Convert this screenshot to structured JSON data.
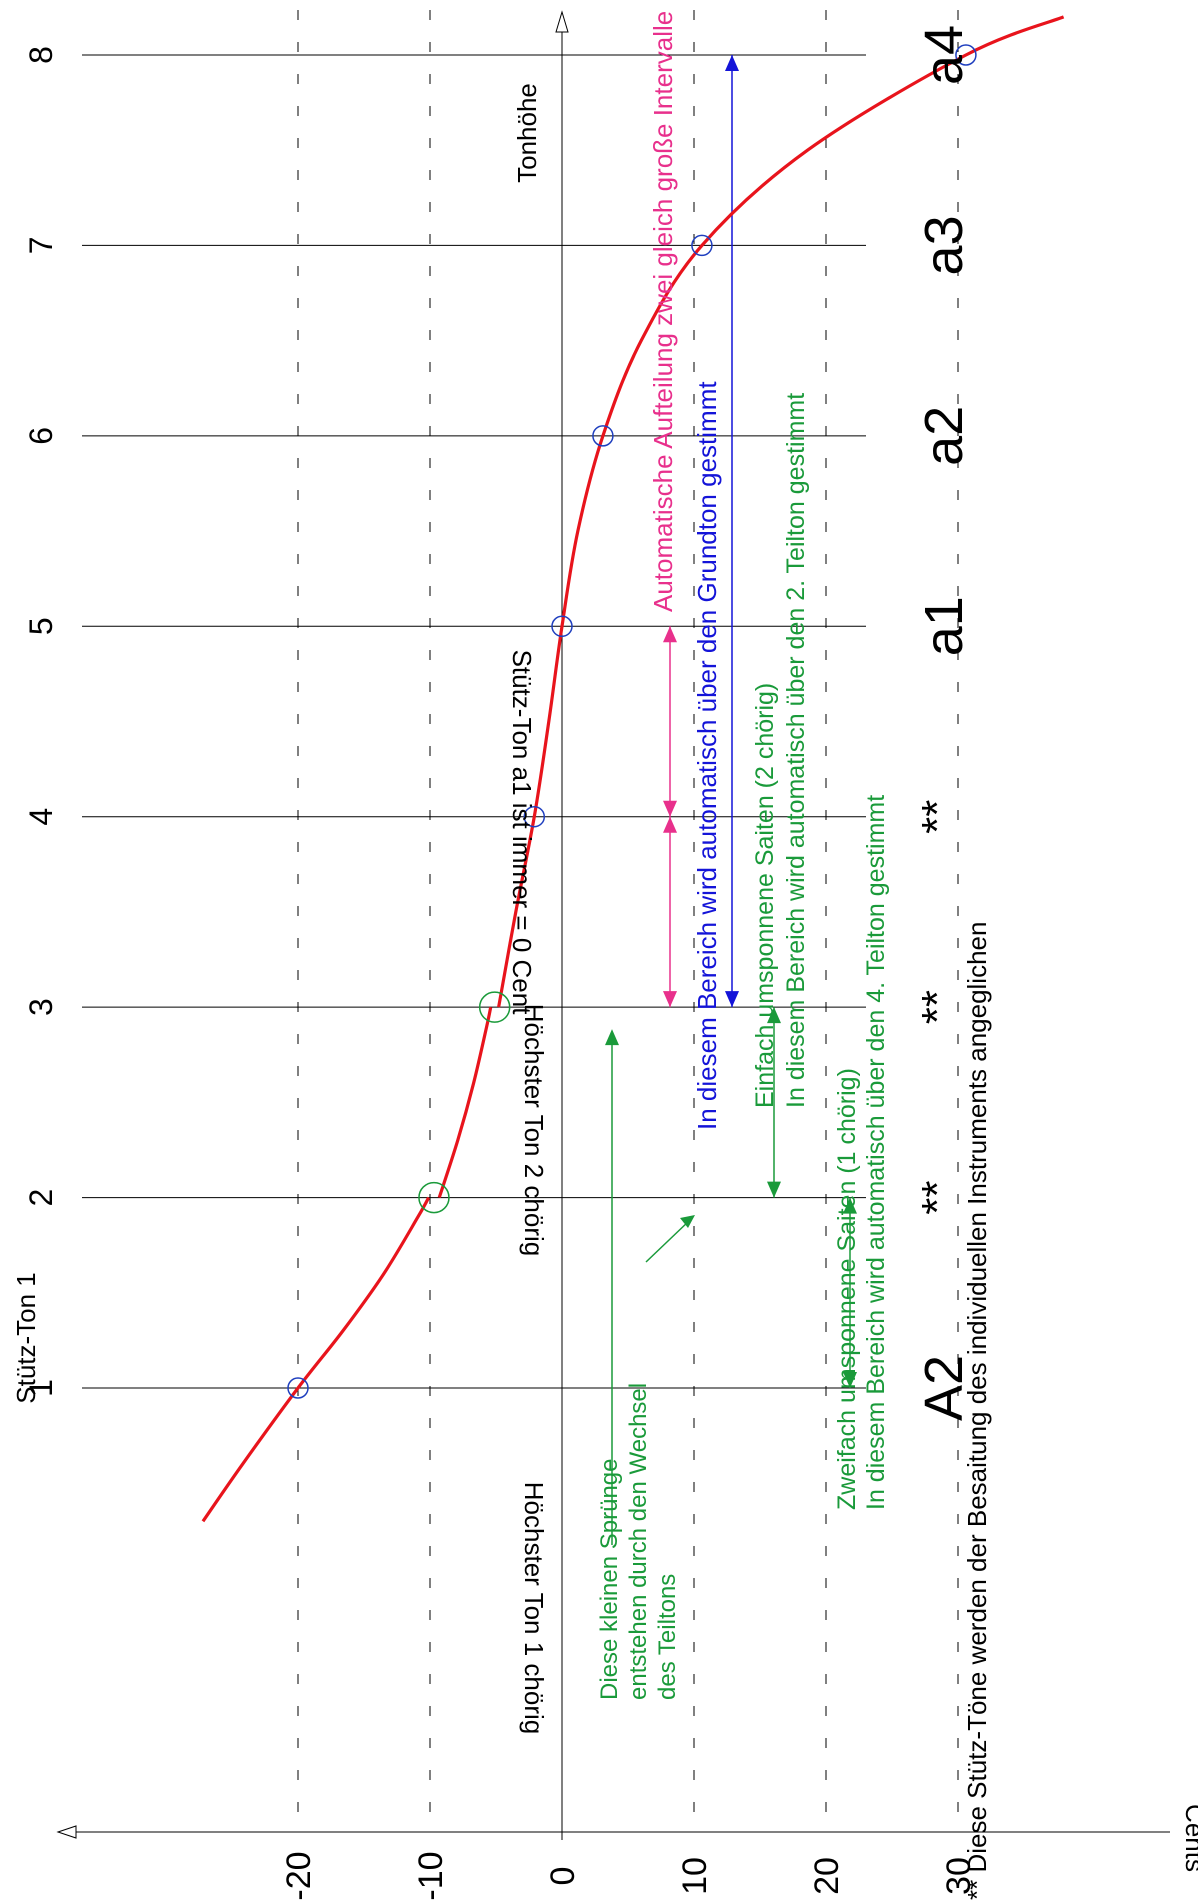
{
  "chart_data": {
    "type": "line",
    "orientation": "rotated-90-clockwise",
    "grid": true,
    "x_axis": {
      "label": "Tonhöhe",
      "ticks": [
        1,
        2,
        3,
        4,
        5,
        6,
        7,
        8
      ],
      "tick_labels": [
        "1",
        "2",
        "3",
        "4",
        "5",
        "6",
        "7",
        "8"
      ],
      "note_labels": [
        "A2",
        "**",
        "**",
        "**",
        "a1",
        "a2",
        "a3",
        "a4"
      ],
      "range": [
        0.5,
        8.3
      ]
    },
    "y_axis": {
      "label": "Cents",
      "ticks": [
        -20,
        -10,
        0,
        10,
        20,
        30
      ],
      "tick_labels": [
        "-20",
        "-10",
        "0",
        "10",
        "20",
        "30"
      ],
      "range": [
        -25,
        37
      ]
    },
    "axis_tick_label": "Stütz-Ton 1",
    "curve": {
      "color": "#e8141c",
      "segments": [
        {
          "x": [
            0.3,
            0.6,
            1.0,
            1.3,
            1.6,
            1.9,
            2.0
          ],
          "y": [
            -27.2,
            -24.2,
            -20.0,
            -16.6,
            -13.5,
            -10.9,
            -10.1
          ]
        },
        {
          "x": [
            2.0,
            2.3,
            2.6,
            2.9,
            3.0
          ],
          "y": [
            -9.3,
            -7.9,
            -6.7,
            -5.7,
            -5.4
          ]
        },
        {
          "x": [
            3.0,
            3.5,
            4.0,
            4.5,
            5.0,
            5.5,
            6.0,
            6.5,
            7.0,
            7.5,
            8.0,
            8.2
          ],
          "y": [
            -4.8,
            -3.5,
            -2.1,
            -1.0,
            0.0,
            1.2,
            3.1,
            6.0,
            10.6,
            18.6,
            30.6,
            38.0
          ]
        }
      ]
    },
    "support_points": [
      {
        "x": 1,
        "y": -20.0,
        "color": "#1f3fbf"
      },
      {
        "x": 4,
        "y": -2.1,
        "color": "#1f3fbf"
      },
      {
        "x": 5,
        "y": 0.0,
        "color": "#1f3fbf"
      },
      {
        "x": 6,
        "y": 3.1,
        "color": "#1f3fbf"
      },
      {
        "x": 7,
        "y": 10.6,
        "color": "#1f3fbf"
      },
      {
        "x": 8,
        "y": 30.6,
        "color": "#1f3fbf"
      }
    ],
    "jump_points": [
      {
        "x": 2,
        "y": -9.7,
        "color": "#1a9a3a"
      },
      {
        "x": 3,
        "y": -5.1,
        "color": "#1a9a3a"
      }
    ],
    "annotations": {
      "hoechster_1": "Höchster Ton  1 chörig",
      "hoechster_2": "Höchster Ton  2 chörig",
      "stuetz_a1": "Stütz-Ton a1 ist immer = 0 Cent",
      "spruenge": [
        "Diese kleinen Sprünge",
        "entstehen durch den Wechsel",
        "des Teiltons"
      ],
      "pink_text": "Automatische Aufteilung zwei gleich große Intervalle",
      "blue_text": "In diesem Bereich wird automatisch über den Grundton gestimmt",
      "green1_lines": [
        "Einfach umsponnene Saiten (2 chörig)",
        "In diesem Bereich wird automatisch über den 2. Teilton gestimmt"
      ],
      "green2_lines": [
        "Zweifach umsponnene Saiten (1 chörig)",
        "In diesem Bereich wird automatisch über den 4. Teilton gestimmt"
      ],
      "footnote": "** Diese Stütz-Töne werden der Besaitung des individuellen Instruments angeglichen"
    },
    "colors": {
      "pink": "#e8308c",
      "blue": "#1414d8",
      "green": "#1a9a3a",
      "red": "#e8141c",
      "circle_blue": "#1f3fbf"
    }
  }
}
